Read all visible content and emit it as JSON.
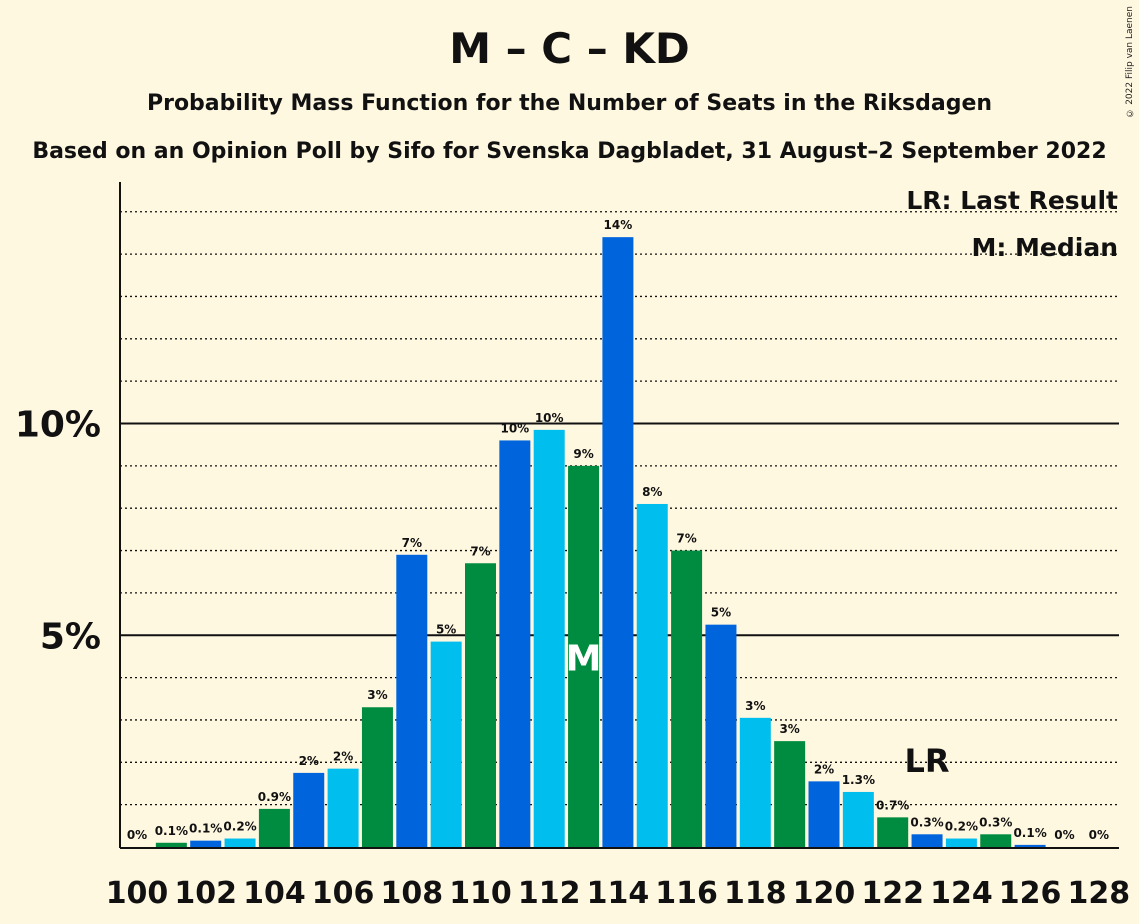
{
  "title": "M – C – KD",
  "subtitle1": "Probability Mass Function for the Number of Seats in the Riksdagen",
  "subtitle2": "Based on an Opinion Poll by Sifo for Svenska Dagbladet, 31 August–2 September 2022",
  "copyright": "© 2022 Filip van Laenen",
  "legend": {
    "placement": "top-right",
    "last_result": "LR: Last Result",
    "median": "M: Median"
  },
  "colors": {
    "background": "#fff8e1",
    "series": [
      "#00bfee",
      "#008c40",
      "#0065dd"
    ],
    "median_marker": "#ffffff"
  },
  "chart_data": {
    "type": "bar",
    "x": [
      100,
      101,
      102,
      103,
      104,
      105,
      106,
      107,
      108,
      109,
      110,
      111,
      112,
      113,
      114,
      115,
      116,
      117,
      118,
      119,
      120,
      121,
      122,
      123,
      124,
      125,
      126,
      127,
      128
    ],
    "values": [
      0,
      0.1,
      0.15,
      0.2,
      0.9,
      1.75,
      1.85,
      3.3,
      6.9,
      4.85,
      6.7,
      9.6,
      9.85,
      9.0,
      14.4,
      8.1,
      7.0,
      5.25,
      3.05,
      2.5,
      1.55,
      1.3,
      0.7,
      0.3,
      0.2,
      0.3,
      0.05,
      0,
      0
    ],
    "data_labels": [
      "0%",
      "0.1%",
      "0.1%",
      "0.2%",
      "0.9%",
      "2%",
      "2%",
      "3%",
      "7%",
      "5%",
      "7%",
      "10%",
      "10%",
      "9%",
      "14%",
      "8%",
      "7%",
      "5%",
      "3%",
      "3%",
      "2%",
      "1.3%",
      "0.7%",
      "0.3%",
      "0.2%",
      "0.3%",
      "0.1%",
      "0%",
      "0%"
    ],
    "x_tick_labels": [
      "100",
      "102",
      "104",
      "106",
      "108",
      "110",
      "112",
      "114",
      "116",
      "118",
      "120",
      "122",
      "124",
      "126",
      "128"
    ],
    "y_tick_labels": [
      "5%",
      "10%"
    ],
    "y_ticks": [
      5,
      10
    ],
    "ylim": [
      0,
      15.7
    ],
    "grid": "dotted every 1%, solid at 5% and 10%",
    "median_seat": 113,
    "median_label": "M",
    "last_result_seat": 123,
    "last_result_label": "LR"
  }
}
